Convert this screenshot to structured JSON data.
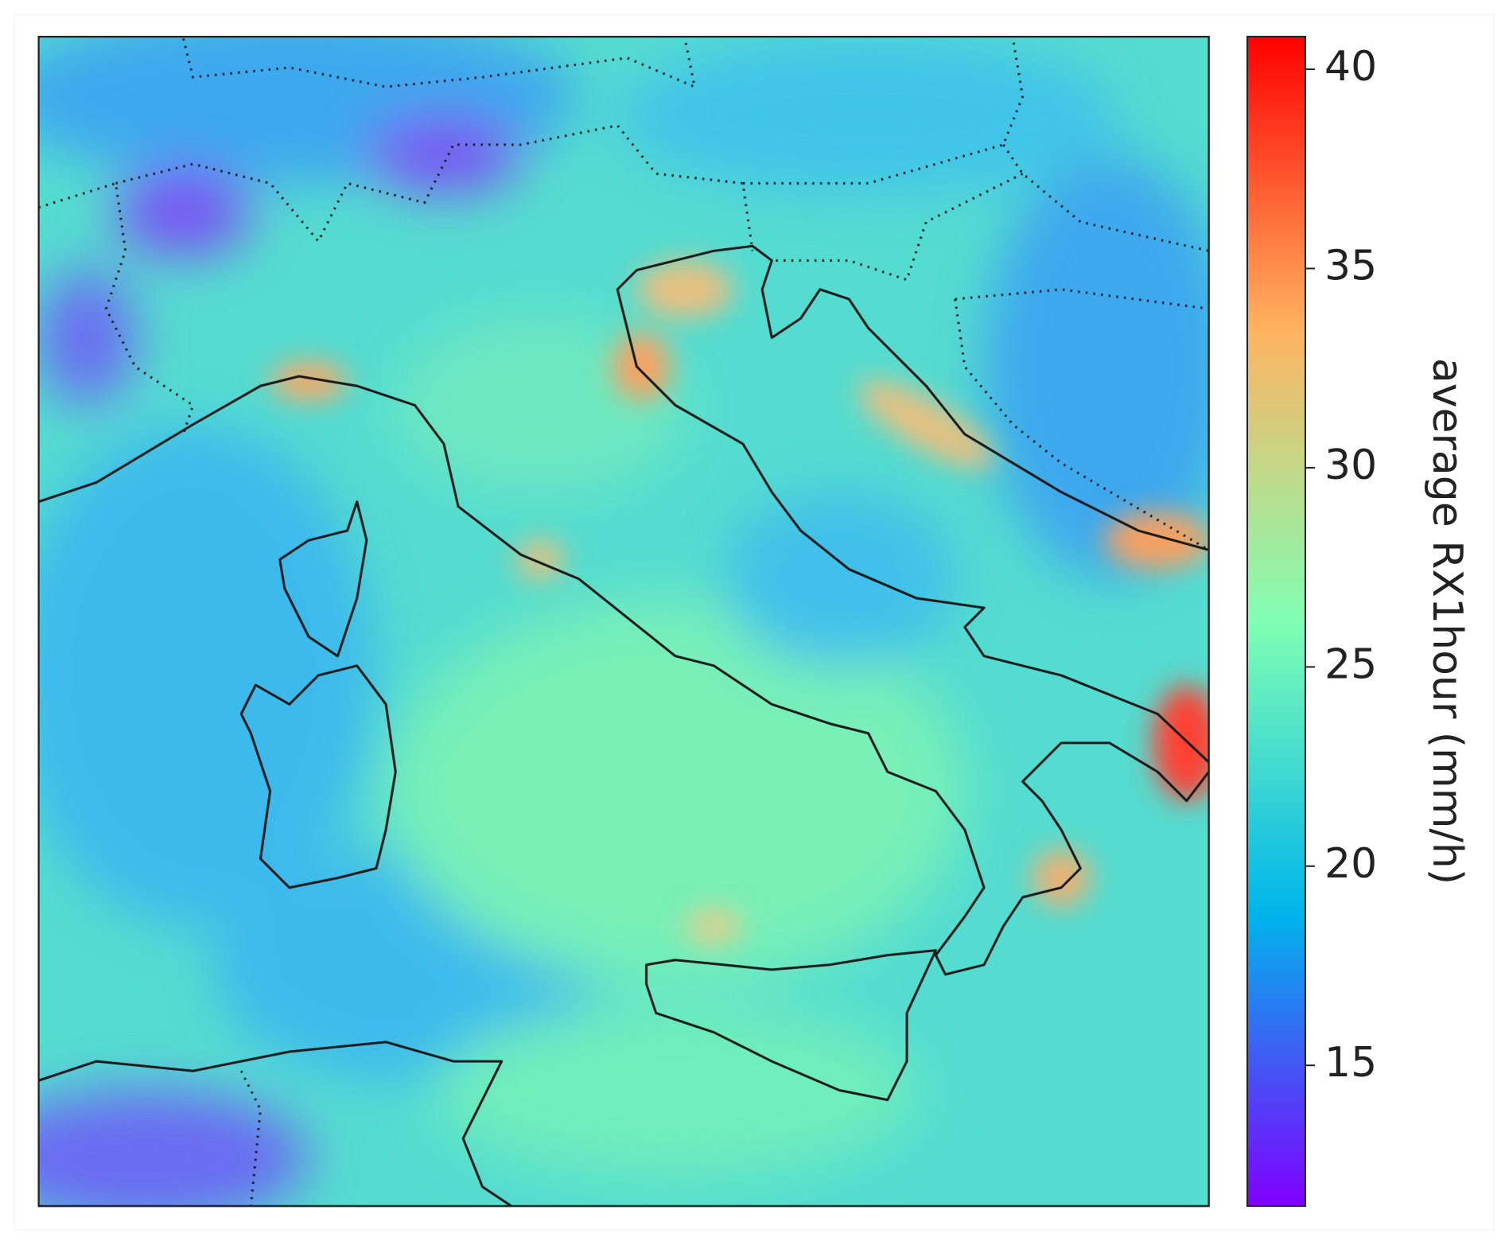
{
  "map": {
    "colorbar": {
      "label": "average RX1hour (mm/h)",
      "lim": [
        11.47,
        40.82
      ],
      "ticks": [
        15,
        20,
        25,
        30,
        35,
        40
      ],
      "colormap": [
        "#8000ff",
        "#00b5eb",
        "#80ffb4",
        "#ffb360",
        "#ff0000"
      ]
    }
  }
}
